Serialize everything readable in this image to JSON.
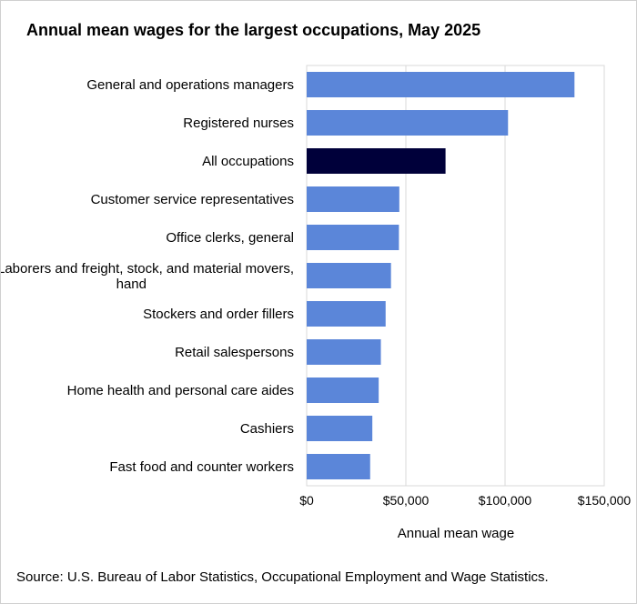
{
  "chart_data": {
    "type": "bar",
    "orientation": "horizontal",
    "title": "Annual mean wages for the largest occupations, May 2025",
    "xlabel": "Annual mean wage",
    "ylabel": "",
    "source": "Source: U.S. Bureau of Labor Statistics, Occupational Employment and Wage Statistics.",
    "categories": [
      "General and operations managers",
      "Registered nurses",
      "All occupations",
      "Customer service representatives",
      "Office clerks, general",
      "Laborers and freight, stock, and material movers, hand",
      "Stockers and order fillers",
      "Retail salespersons",
      "Home health and personal care aides",
      "Cashiers",
      "Fast food and counter workers"
    ],
    "values": [
      135000,
      101500,
      70000,
      46700,
      46500,
      42500,
      39800,
      37400,
      36300,
      33100,
      32000
    ],
    "highlight_index": 2,
    "colors": {
      "bar": "#5b86d9",
      "highlight": "#00003a",
      "grid": "#d9d9d9"
    },
    "xlim": [
      0,
      150000
    ],
    "xticks": [
      0,
      50000,
      100000,
      150000
    ],
    "xtick_labels": [
      "$0",
      "$50,000",
      "$100,000",
      "$150,000"
    ],
    "grid": true,
    "legend": "none"
  }
}
